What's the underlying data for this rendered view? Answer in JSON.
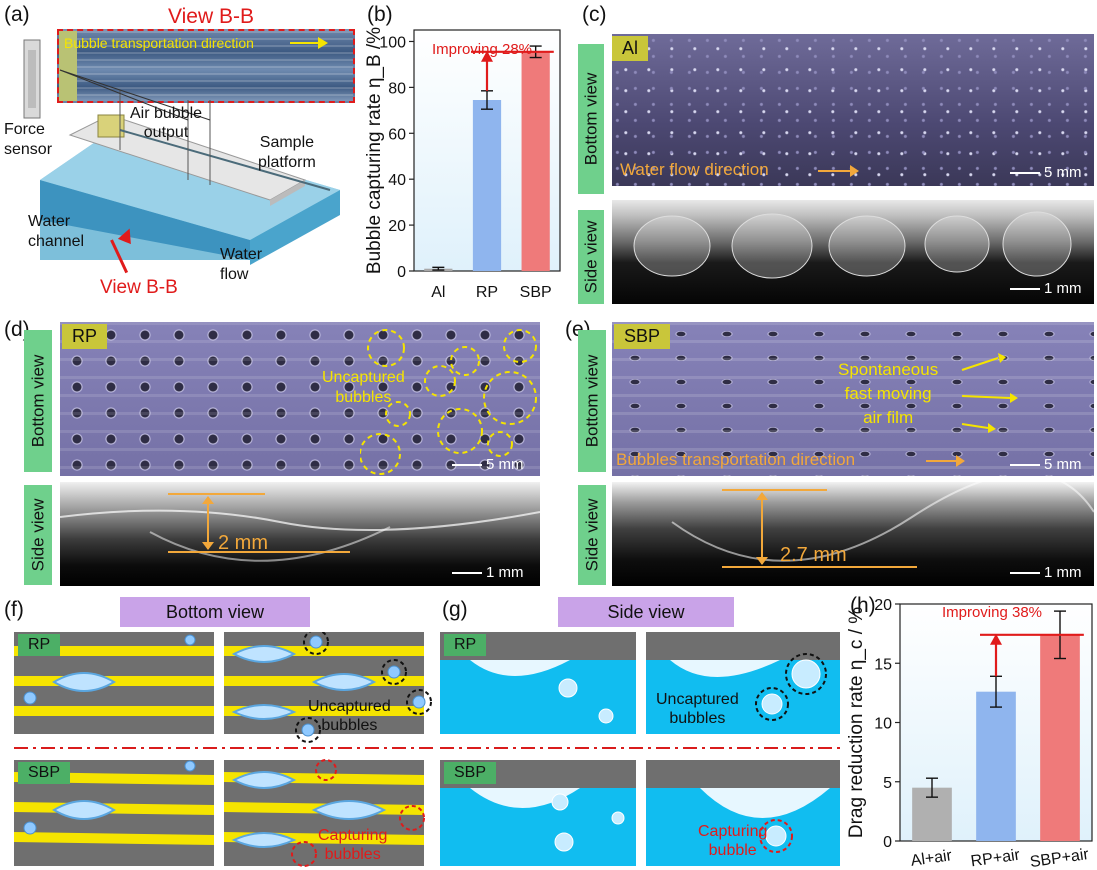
{
  "panels": {
    "a": {
      "label": "(a)",
      "view_title": "View B-B",
      "transport_text": "Bubble transportation direction",
      "force_sensor": "Force\nsensor",
      "air_bubble_output": "Air bubble\noutput",
      "sample_platform": "Sample\nplatform",
      "water_channel": "Water\nchannel",
      "water_flow": "Water\nflow",
      "view_bb": "View B-B"
    },
    "b": {
      "label": "(b)"
    },
    "c": {
      "label": "(c)",
      "tag": "Al",
      "bottom_view": "Bottom view",
      "side_view": "Side view",
      "flow_text": "Water flow direction",
      "scale_top": "5 mm",
      "scale_bottom": "1 mm"
    },
    "d": {
      "label": "(d)",
      "tag": "RP",
      "bottom_view": "Bottom view",
      "side_view": "Side view",
      "uncaptured": "Uncaptured\nbubbles",
      "scale_top": "5 mm",
      "thickness": "2 mm",
      "scale_bottom": "1 mm"
    },
    "e": {
      "label": "(e)",
      "tag": "SBP",
      "bottom_view": "Bottom view",
      "side_view": "Side view",
      "spontaneous": "Spontaneous\nfast moving\nair film",
      "transport": "Bubbles transportation direction",
      "scale_top": "5 mm",
      "thickness": "2.7 mm",
      "scale_bottom": "1 mm"
    },
    "f": {
      "label": "(f)",
      "title": "Bottom view",
      "rp": "RP",
      "sbp": "SBP",
      "uncaptured": "Uncaptured\nbubbles",
      "capturing": "Capturing\nbubbles"
    },
    "g": {
      "label": "(g)",
      "title": "Side view",
      "rp": "RP",
      "sbp": "SBP",
      "uncaptured": "Uncaptured\nbubbles",
      "capturing": "Capturing\nbubble"
    },
    "h": {
      "label": "(h)"
    }
  },
  "chart_data": [
    {
      "id": "b",
      "type": "bar",
      "categories": [
        "Al",
        "RP",
        "SBP"
      ],
      "values": [
        1,
        74.5,
        95.5
      ],
      "errors": [
        0.6,
        4,
        2.5
      ],
      "colors": [
        "#a8a8a8",
        "#8fb5ee",
        "#ef7a7a"
      ],
      "ylabel": "Bubble capturing rate η_B /%",
      "ylim": [
        0,
        105
      ],
      "yticks": [
        0,
        20,
        40,
        60,
        80,
        100
      ],
      "annotation": "Improving 28%"
    },
    {
      "id": "h",
      "type": "bar",
      "categories": [
        "Al+air",
        "RP+air",
        "SBP+air"
      ],
      "values": [
        4.5,
        12.6,
        17.4
      ],
      "errors": [
        0.8,
        1.3,
        2.0
      ],
      "colors": [
        "#b0b0b0",
        "#8fb5ee",
        "#ef7a7a"
      ],
      "ylabel": "Drag reduction rate η_c / %",
      "ylim": [
        0,
        20
      ],
      "yticks": [
        0,
        5,
        10,
        15,
        20
      ],
      "annotation": "Improving 38%"
    }
  ]
}
